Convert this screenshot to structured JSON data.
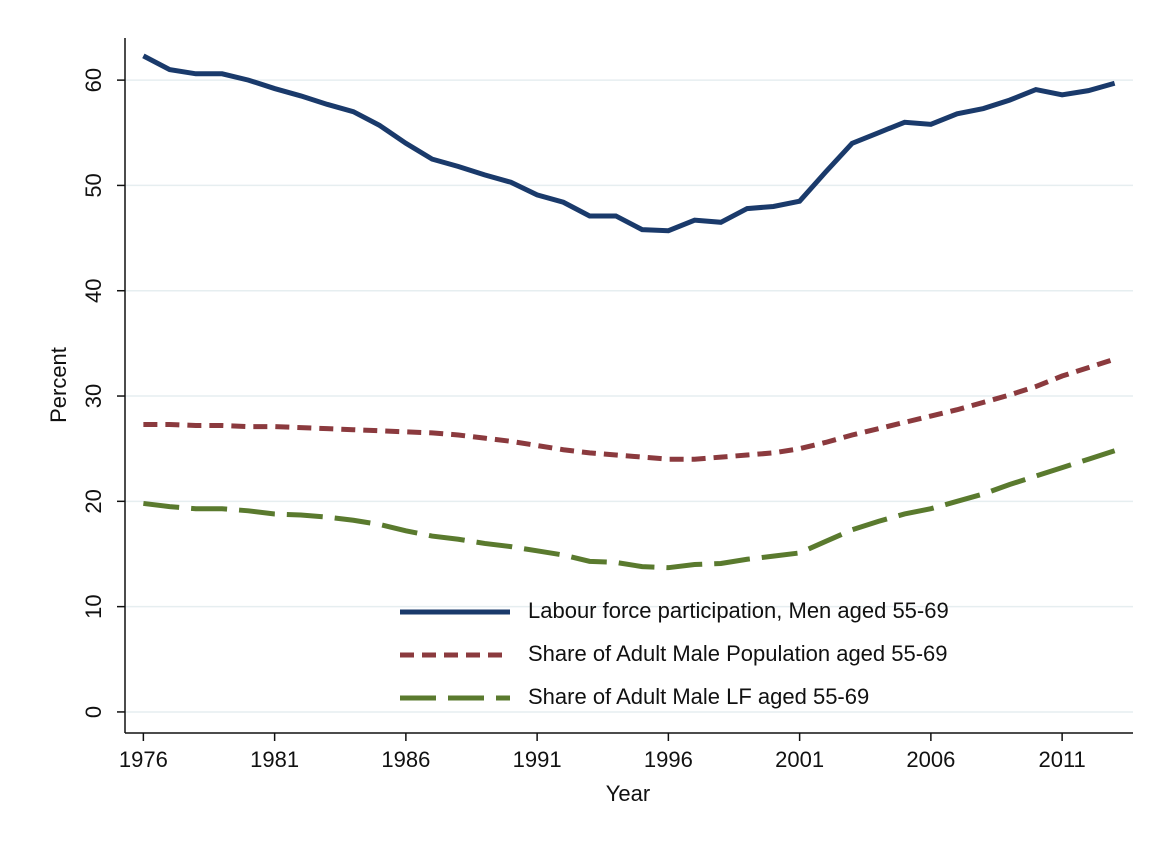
{
  "chart_data": {
    "type": "line",
    "x_label": "Year",
    "y_label": "Percent",
    "x": [
      1976,
      1977,
      1978,
      1979,
      1980,
      1981,
      1982,
      1983,
      1984,
      1985,
      1986,
      1987,
      1988,
      1989,
      1990,
      1991,
      1992,
      1993,
      1994,
      1995,
      1996,
      1997,
      1998,
      1999,
      2000,
      2001,
      2002,
      2003,
      2004,
      2005,
      2006,
      2007,
      2008,
      2009,
      2010,
      2011,
      2012,
      2013
    ],
    "series": [
      {
        "name": "Labour force participation, Men aged 55-69",
        "color": "#1a3a6b",
        "dash": "solid",
        "values": [
          62.3,
          61.0,
          60.6,
          60.6,
          60.0,
          59.2,
          58.5,
          57.7,
          57.0,
          55.7,
          54.0,
          52.5,
          51.8,
          51.0,
          50.3,
          49.1,
          48.4,
          47.1,
          47.1,
          45.8,
          45.7,
          46.7,
          46.5,
          47.8,
          48.0,
          48.5,
          51.3,
          54.0,
          55.0,
          56.0,
          55.8,
          56.8,
          57.3,
          58.1,
          59.1,
          58.6,
          59.0,
          59.7
        ]
      },
      {
        "name": "Share of Adult Male Population aged 55-69",
        "color": "#8b3a3e",
        "dash": "short",
        "values": [
          27.3,
          27.3,
          27.2,
          27.2,
          27.1,
          27.1,
          27.0,
          26.9,
          26.8,
          26.7,
          26.6,
          26.5,
          26.3,
          26.0,
          25.7,
          25.3,
          24.9,
          24.6,
          24.4,
          24.2,
          24.0,
          24.0,
          24.2,
          24.4,
          24.6,
          25.0,
          25.6,
          26.3,
          26.9,
          27.5,
          28.1,
          28.7,
          29.4,
          30.1,
          30.9,
          31.9,
          32.7,
          33.5
        ]
      },
      {
        "name": "Share of Adult Male LF aged 55-69",
        "color": "#5a7a2e",
        "dash": "long",
        "values": [
          19.8,
          19.5,
          19.3,
          19.3,
          19.1,
          18.8,
          18.7,
          18.5,
          18.2,
          17.8,
          17.2,
          16.7,
          16.4,
          16.0,
          15.7,
          15.3,
          14.9,
          14.3,
          14.2,
          13.8,
          13.7,
          14.0,
          14.1,
          14.5,
          14.8,
          15.1,
          16.2,
          17.3,
          18.1,
          18.8,
          19.3,
          20.0,
          20.7,
          21.6,
          22.4,
          23.2,
          24.0,
          24.8
        ]
      }
    ],
    "xlim": [
      1975.3,
      2013.7
    ],
    "ylim": [
      -2,
      64
    ],
    "xticks": [
      1976,
      1981,
      1986,
      1991,
      1996,
      2001,
      2006,
      2011
    ],
    "yticks": [
      0,
      10,
      20,
      30,
      40,
      50,
      60
    ],
    "grid": true,
    "legend": "lower right"
  }
}
